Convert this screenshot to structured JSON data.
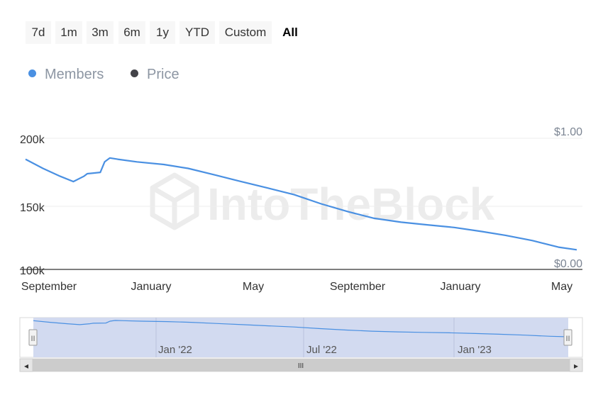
{
  "range_selector": {
    "buttons": [
      {
        "label": "7d",
        "active": false
      },
      {
        "label": "1m",
        "active": false
      },
      {
        "label": "3m",
        "active": false
      },
      {
        "label": "6m",
        "active": false
      },
      {
        "label": "1y",
        "active": false
      },
      {
        "label": "YTD",
        "active": false
      },
      {
        "label": "Custom",
        "active": false
      },
      {
        "label": "All",
        "active": true
      }
    ]
  },
  "legend": {
    "items": [
      {
        "label": "Members",
        "color": "#4a90e2"
      },
      {
        "label": "Price",
        "color": "#434348"
      }
    ]
  },
  "watermark": {
    "text": "IntoTheBlock",
    "icon": "intotheblock-logo-icon"
  },
  "navigator": {
    "ticks": [
      "Jan '22",
      "Jul '22",
      "Jan '23"
    ],
    "scroll_grip": "III",
    "left_arrow": "◂",
    "right_arrow": "▸",
    "handle_grip": "II"
  },
  "chart_data": {
    "type": "line",
    "x_tick_labels": [
      "September",
      "January",
      "May",
      "September",
      "January",
      "May"
    ],
    "x_range": [
      "2021-08-26",
      "2023-05-22"
    ],
    "y_left": {
      "ticks": [
        "100k",
        "150k",
        "200k"
      ],
      "range": [
        100000,
        200000
      ]
    },
    "y_right": {
      "ticks": [
        "$0.00",
        "$1.00"
      ],
      "range": [
        0,
        1
      ]
    },
    "grid": true,
    "legend_position": "top-left",
    "series": [
      {
        "name": "Members",
        "color": "#4a90e2",
        "axis": "left",
        "x": [
          "2021-08-26",
          "2021-09-15",
          "2021-10-05",
          "2021-10-20",
          "2021-11-01",
          "2021-11-05",
          "2021-11-20",
          "2021-11-25",
          "2021-12-01",
          "2021-12-10",
          "2022-01-01",
          "2022-02-01",
          "2022-03-01",
          "2022-04-01",
          "2022-05-01",
          "2022-06-01",
          "2022-07-01",
          "2022-08-01",
          "2022-09-01",
          "2022-10-01",
          "2022-11-01",
          "2022-12-01",
          "2023-01-01",
          "2023-02-01",
          "2023-03-01",
          "2023-04-01",
          "2023-05-01",
          "2023-05-22"
        ],
        "y": [
          184000,
          177000,
          171000,
          167000,
          171000,
          173000,
          174000,
          182000,
          185000,
          184000,
          182000,
          180000,
          177000,
          172000,
          167000,
          162000,
          157000,
          150000,
          144000,
          139000,
          136000,
          134000,
          132000,
          129000,
          126000,
          122000,
          117000,
          115000
        ]
      },
      {
        "name": "Price",
        "color": "#434348",
        "axis": "right",
        "x": [],
        "y": []
      }
    ]
  }
}
